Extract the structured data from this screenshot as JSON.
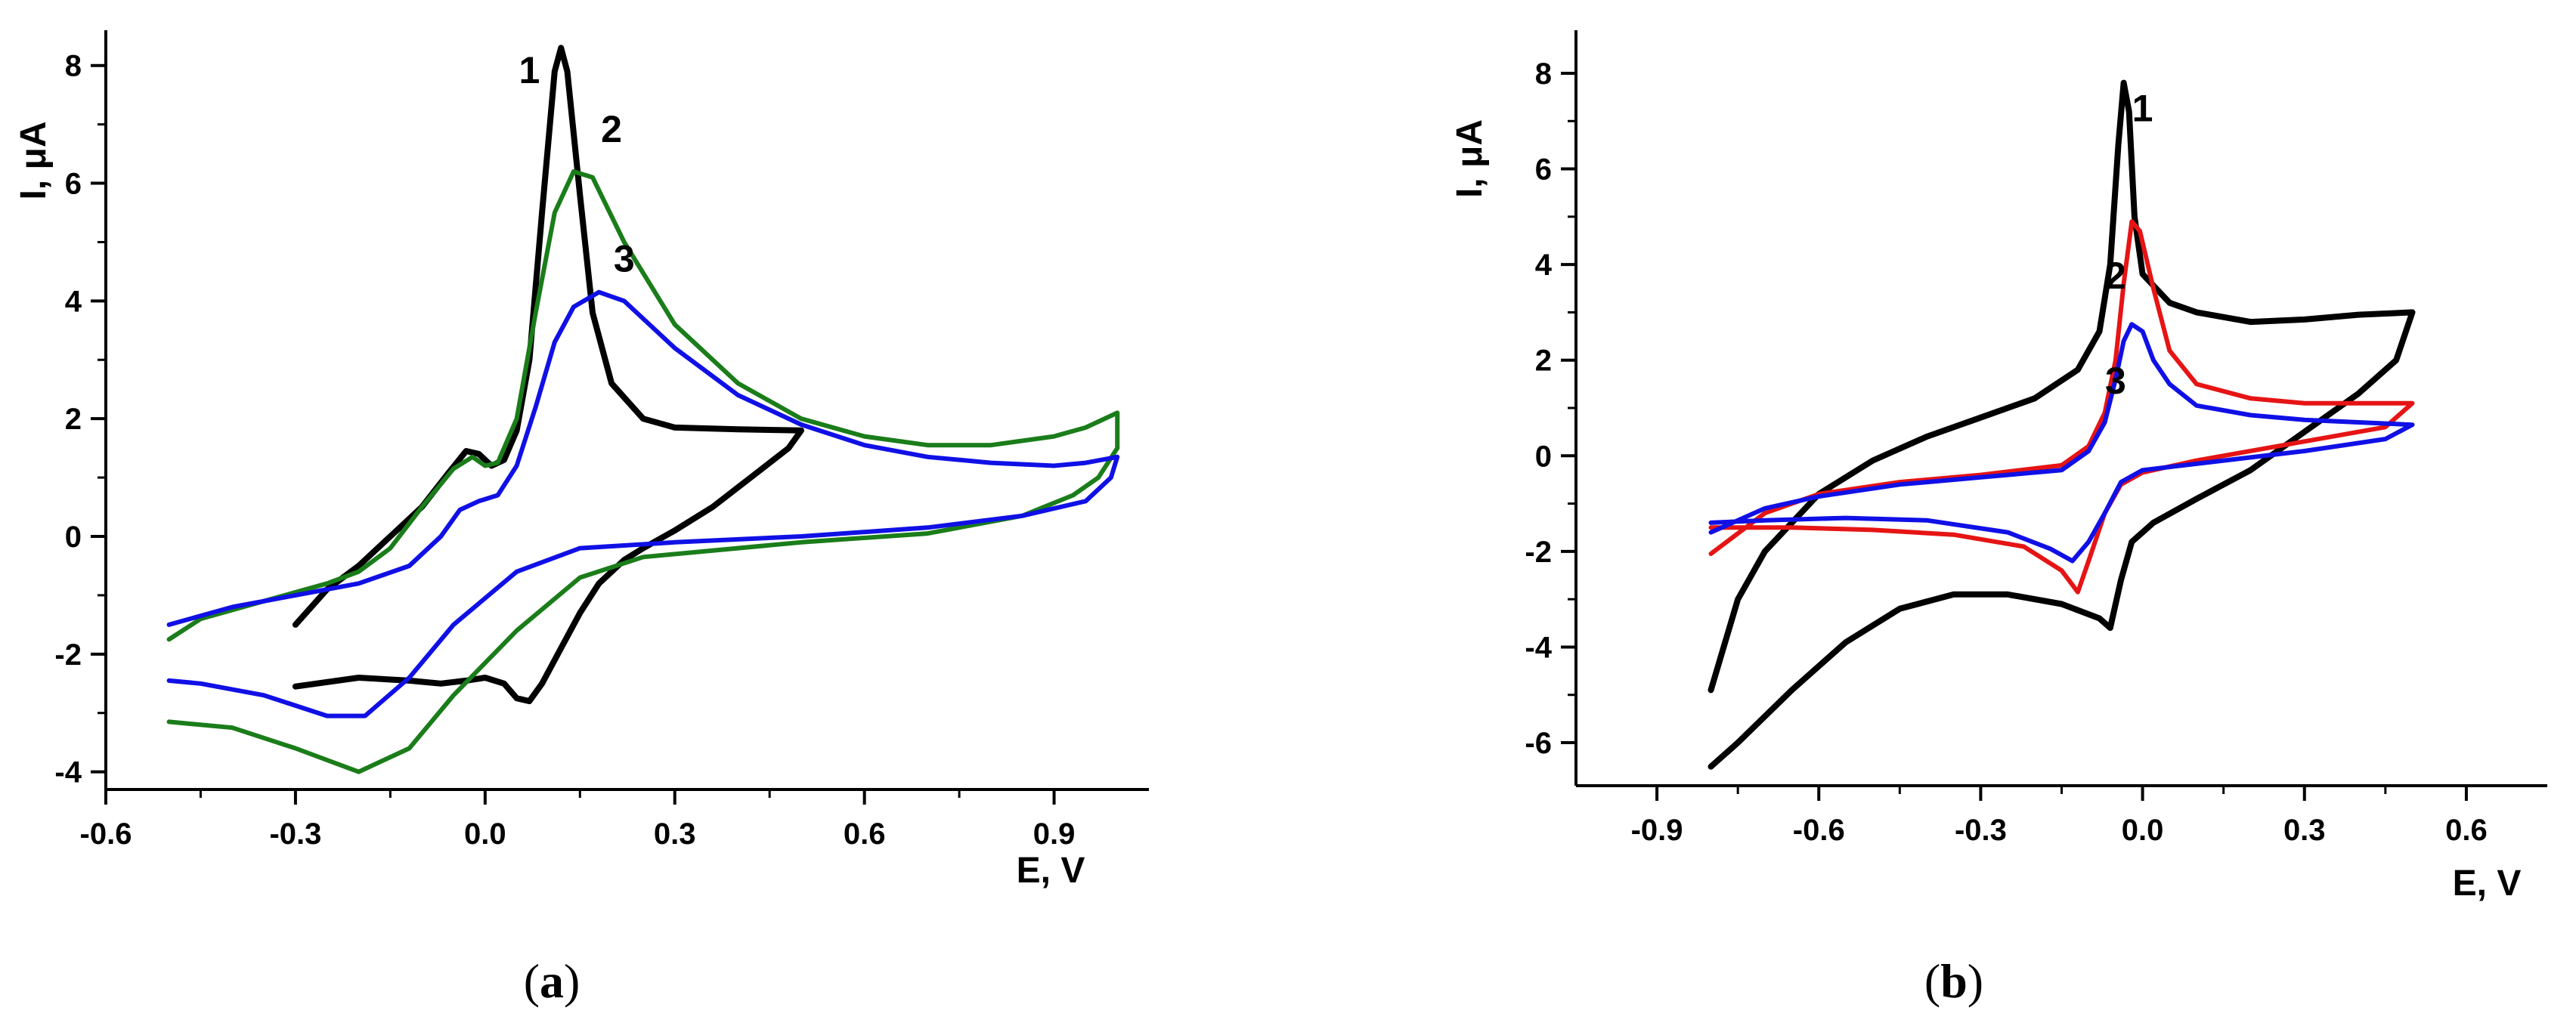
{
  "figure_labels": {
    "a": [
      "(",
      "a",
      ")"
    ],
    "b": [
      "(",
      "b",
      ")"
    ]
  },
  "colors": {
    "black": "#000000",
    "green": "#1a7d1a",
    "blue": "#1010e6",
    "red": "#e61414"
  },
  "chart_data": [
    {
      "type": "line",
      "panel": "a",
      "xlabel": "E, V",
      "ylabel": "I, μA",
      "xlim": [
        -0.6,
        1.05
      ],
      "ylim": [
        -4.3,
        8.6
      ],
      "xticks": [
        "-0.6",
        "-0.3",
        "0.0",
        "0.3",
        "0.6",
        "0.9"
      ],
      "xtick_values": [
        -0.6,
        -0.3,
        0.0,
        0.3,
        0.6,
        0.9
      ],
      "yticks": [
        "-4",
        "-2",
        "0",
        "2",
        "4",
        "6",
        "8"
      ],
      "ytick_values": [
        -4,
        -2,
        0,
        2,
        4,
        6,
        8
      ],
      "series": [
        {
          "label": "1",
          "color": "#000000",
          "label_at": [
            0.07,
            7.7
          ],
          "points": [
            [
              -0.3,
              -1.5
            ],
            [
              -0.25,
              -0.9
            ],
            [
              -0.2,
              -0.5
            ],
            [
              -0.15,
              0.0
            ],
            [
              -0.1,
              0.5
            ],
            [
              -0.06,
              1.05
            ],
            [
              -0.03,
              1.45
            ],
            [
              -0.01,
              1.4
            ],
            [
              0.01,
              1.2
            ],
            [
              0.03,
              1.3
            ],
            [
              0.05,
              1.8
            ],
            [
              0.07,
              3.0
            ],
            [
              0.09,
              5.5
            ],
            [
              0.11,
              7.9
            ],
            [
              0.12,
              8.3
            ],
            [
              0.13,
              7.9
            ],
            [
              0.15,
              5.8
            ],
            [
              0.17,
              3.8
            ],
            [
              0.2,
              2.6
            ],
            [
              0.25,
              2.0
            ],
            [
              0.3,
              1.85
            ],
            [
              0.4,
              1.82
            ],
            [
              0.5,
              1.8
            ],
            [
              0.48,
              1.5
            ],
            [
              0.42,
              1.0
            ],
            [
              0.36,
              0.5
            ],
            [
              0.3,
              0.1
            ],
            [
              0.25,
              -0.2
            ],
            [
              0.22,
              -0.4
            ],
            [
              0.18,
              -0.8
            ],
            [
              0.15,
              -1.3
            ],
            [
              0.12,
              -1.9
            ],
            [
              0.09,
              -2.5
            ],
            [
              0.07,
              -2.8
            ],
            [
              0.05,
              -2.75
            ],
            [
              0.03,
              -2.5
            ],
            [
              0.0,
              -2.4
            ],
            [
              -0.03,
              -2.45
            ],
            [
              -0.07,
              -2.5
            ],
            [
              -0.12,
              -2.45
            ],
            [
              -0.2,
              -2.4
            ],
            [
              -0.3,
              -2.55
            ]
          ]
        },
        {
          "label": "2",
          "color": "#1a7d1a",
          "label_at": [
            0.2,
            6.7
          ],
          "points": [
            [
              -0.5,
              -1.75
            ],
            [
              -0.45,
              -1.4
            ],
            [
              -0.35,
              -1.1
            ],
            [
              -0.25,
              -0.8
            ],
            [
              -0.2,
              -0.6
            ],
            [
              -0.15,
              -0.2
            ],
            [
              -0.1,
              0.5
            ],
            [
              -0.05,
              1.15
            ],
            [
              -0.02,
              1.35
            ],
            [
              0.0,
              1.2
            ],
            [
              0.02,
              1.25
            ],
            [
              0.05,
              2.0
            ],
            [
              0.08,
              3.8
            ],
            [
              0.11,
              5.5
            ],
            [
              0.14,
              6.2
            ],
            [
              0.17,
              6.1
            ],
            [
              0.22,
              5.0
            ],
            [
              0.3,
              3.6
            ],
            [
              0.4,
              2.6
            ],
            [
              0.5,
              2.0
            ],
            [
              0.6,
              1.7
            ],
            [
              0.7,
              1.55
            ],
            [
              0.8,
              1.55
            ],
            [
              0.9,
              1.7
            ],
            [
              0.95,
              1.85
            ],
            [
              1.0,
              2.1
            ],
            [
              1.0,
              1.5
            ],
            [
              0.97,
              1.0
            ],
            [
              0.93,
              0.7
            ],
            [
              0.85,
              0.35
            ],
            [
              0.7,
              0.05
            ],
            [
              0.5,
              -0.1
            ],
            [
              0.35,
              -0.25
            ],
            [
              0.25,
              -0.35
            ],
            [
              0.15,
              -0.7
            ],
            [
              0.05,
              -1.6
            ],
            [
              -0.05,
              -2.7
            ],
            [
              -0.12,
              -3.6
            ],
            [
              -0.2,
              -4.0
            ],
            [
              -0.3,
              -3.6
            ],
            [
              -0.4,
              -3.25
            ],
            [
              -0.5,
              -3.15
            ]
          ]
        },
        {
          "label": "3",
          "color": "#1010e6",
          "label_at": [
            0.22,
            4.5
          ],
          "points": [
            [
              -0.5,
              -1.5
            ],
            [
              -0.4,
              -1.2
            ],
            [
              -0.3,
              -1.0
            ],
            [
              -0.2,
              -0.8
            ],
            [
              -0.12,
              -0.5
            ],
            [
              -0.07,
              0.0
            ],
            [
              -0.04,
              0.45
            ],
            [
              -0.01,
              0.6
            ],
            [
              0.02,
              0.7
            ],
            [
              0.05,
              1.2
            ],
            [
              0.08,
              2.2
            ],
            [
              0.11,
              3.3
            ],
            [
              0.14,
              3.9
            ],
            [
              0.18,
              4.15
            ],
            [
              0.22,
              4.0
            ],
            [
              0.3,
              3.2
            ],
            [
              0.4,
              2.4
            ],
            [
              0.5,
              1.9
            ],
            [
              0.6,
              1.55
            ],
            [
              0.7,
              1.35
            ],
            [
              0.8,
              1.25
            ],
            [
              0.9,
              1.2
            ],
            [
              0.95,
              1.25
            ],
            [
              1.0,
              1.35
            ],
            [
              0.99,
              1.0
            ],
            [
              0.95,
              0.6
            ],
            [
              0.85,
              0.35
            ],
            [
              0.7,
              0.15
            ],
            [
              0.5,
              0.0
            ],
            [
              0.3,
              -0.1
            ],
            [
              0.15,
              -0.2
            ],
            [
              0.05,
              -0.6
            ],
            [
              -0.05,
              -1.5
            ],
            [
              -0.12,
              -2.4
            ],
            [
              -0.19,
              -3.05
            ],
            [
              -0.25,
              -3.05
            ],
            [
              -0.35,
              -2.7
            ],
            [
              -0.45,
              -2.5
            ],
            [
              -0.5,
              -2.45
            ]
          ]
        }
      ]
    },
    {
      "type": "line",
      "panel": "b",
      "xlabel": "E, V",
      "ylabel": "I, μA",
      "xlim": [
        -1.05,
        0.75
      ],
      "ylim": [
        -6.9,
        8.9
      ],
      "xticks": [
        "-0.9",
        "-0.6",
        "-0.3",
        "0.0",
        "0.3",
        "0.6"
      ],
      "xtick_values": [
        -0.9,
        -0.6,
        -0.3,
        0.0,
        0.3,
        0.6
      ],
      "yticks": [
        "-6",
        "-4",
        "-2",
        "0",
        "2",
        "4",
        "6",
        "8"
      ],
      "ytick_values": [
        -6,
        -4,
        -2,
        0,
        2,
        4,
        6,
        8
      ],
      "series": [
        {
          "label": "1",
          "color": "#000000",
          "label_at": [
            0.0,
            7.0
          ],
          "points": [
            [
              -0.8,
              -4.9
            ],
            [
              -0.75,
              -3.0
            ],
            [
              -0.7,
              -2.0
            ],
            [
              -0.6,
              -0.8
            ],
            [
              -0.5,
              -0.1
            ],
            [
              -0.4,
              0.4
            ],
            [
              -0.3,
              0.8
            ],
            [
              -0.2,
              1.2
            ],
            [
              -0.12,
              1.8
            ],
            [
              -0.08,
              2.6
            ],
            [
              -0.06,
              4.0
            ],
            [
              -0.045,
              6.5
            ],
            [
              -0.035,
              7.8
            ],
            [
              -0.025,
              7.2
            ],
            [
              -0.015,
              5.0
            ],
            [
              0.0,
              3.8
            ],
            [
              0.05,
              3.2
            ],
            [
              0.1,
              3.0
            ],
            [
              0.2,
              2.8
            ],
            [
              0.3,
              2.85
            ],
            [
              0.4,
              2.95
            ],
            [
              0.5,
              3.0
            ],
            [
              0.47,
              2.0
            ],
            [
              0.4,
              1.3
            ],
            [
              0.3,
              0.5
            ],
            [
              0.2,
              -0.3
            ],
            [
              0.1,
              -0.9
            ],
            [
              0.02,
              -1.4
            ],
            [
              -0.02,
              -1.8
            ],
            [
              -0.04,
              -2.6
            ],
            [
              -0.06,
              -3.6
            ],
            [
              -0.08,
              -3.4
            ],
            [
              -0.15,
              -3.1
            ],
            [
              -0.25,
              -2.9
            ],
            [
              -0.35,
              -2.9
            ],
            [
              -0.45,
              -3.2
            ],
            [
              -0.55,
              -3.9
            ],
            [
              -0.65,
              -4.9
            ],
            [
              -0.75,
              -6.0
            ],
            [
              -0.8,
              -6.5
            ]
          ]
        },
        {
          "label": "2",
          "color": "#e61414",
          "label_at": [
            -0.05,
            3.5
          ],
          "points": [
            [
              -0.8,
              -2.05
            ],
            [
              -0.7,
              -1.2
            ],
            [
              -0.6,
              -0.8
            ],
            [
              -0.45,
              -0.55
            ],
            [
              -0.3,
              -0.4
            ],
            [
              -0.15,
              -0.2
            ],
            [
              -0.1,
              0.2
            ],
            [
              -0.07,
              0.9
            ],
            [
              -0.05,
              2.0
            ],
            [
              -0.035,
              3.6
            ],
            [
              -0.02,
              4.9
            ],
            [
              -0.005,
              4.7
            ],
            [
              0.02,
              3.5
            ],
            [
              0.05,
              2.2
            ],
            [
              0.1,
              1.5
            ],
            [
              0.2,
              1.2
            ],
            [
              0.3,
              1.1
            ],
            [
              0.4,
              1.1
            ],
            [
              0.5,
              1.1
            ],
            [
              0.45,
              0.6
            ],
            [
              0.3,
              0.3
            ],
            [
              0.1,
              -0.1
            ],
            [
              0.0,
              -0.35
            ],
            [
              -0.04,
              -0.6
            ],
            [
              -0.07,
              -1.2
            ],
            [
              -0.1,
              -2.2
            ],
            [
              -0.12,
              -2.85
            ],
            [
              -0.15,
              -2.4
            ],
            [
              -0.22,
              -1.9
            ],
            [
              -0.35,
              -1.65
            ],
            [
              -0.5,
              -1.55
            ],
            [
              -0.65,
              -1.5
            ],
            [
              -0.8,
              -1.5
            ]
          ]
        },
        {
          "label": "3",
          "color": "#1010e6",
          "label_at": [
            -0.05,
            1.3
          ],
          "points": [
            [
              -0.8,
              -1.6
            ],
            [
              -0.7,
              -1.1
            ],
            [
              -0.6,
              -0.85
            ],
            [
              -0.45,
              -0.6
            ],
            [
              -0.3,
              -0.45
            ],
            [
              -0.15,
              -0.3
            ],
            [
              -0.1,
              0.1
            ],
            [
              -0.07,
              0.7
            ],
            [
              -0.05,
              1.6
            ],
            [
              -0.035,
              2.4
            ],
            [
              -0.02,
              2.75
            ],
            [
              0.0,
              2.6
            ],
            [
              0.02,
              2.0
            ],
            [
              0.05,
              1.5
            ],
            [
              0.1,
              1.05
            ],
            [
              0.2,
              0.85
            ],
            [
              0.3,
              0.75
            ],
            [
              0.4,
              0.7
            ],
            [
              0.5,
              0.65
            ],
            [
              0.45,
              0.35
            ],
            [
              0.3,
              0.1
            ],
            [
              0.15,
              -0.1
            ],
            [
              0.0,
              -0.3
            ],
            [
              -0.04,
              -0.55
            ],
            [
              -0.07,
              -1.2
            ],
            [
              -0.1,
              -1.8
            ],
            [
              -0.13,
              -2.2
            ],
            [
              -0.17,
              -1.95
            ],
            [
              -0.25,
              -1.6
            ],
            [
              -0.4,
              -1.35
            ],
            [
              -0.55,
              -1.3
            ],
            [
              -0.7,
              -1.35
            ],
            [
              -0.8,
              -1.4
            ]
          ]
        }
      ]
    }
  ]
}
